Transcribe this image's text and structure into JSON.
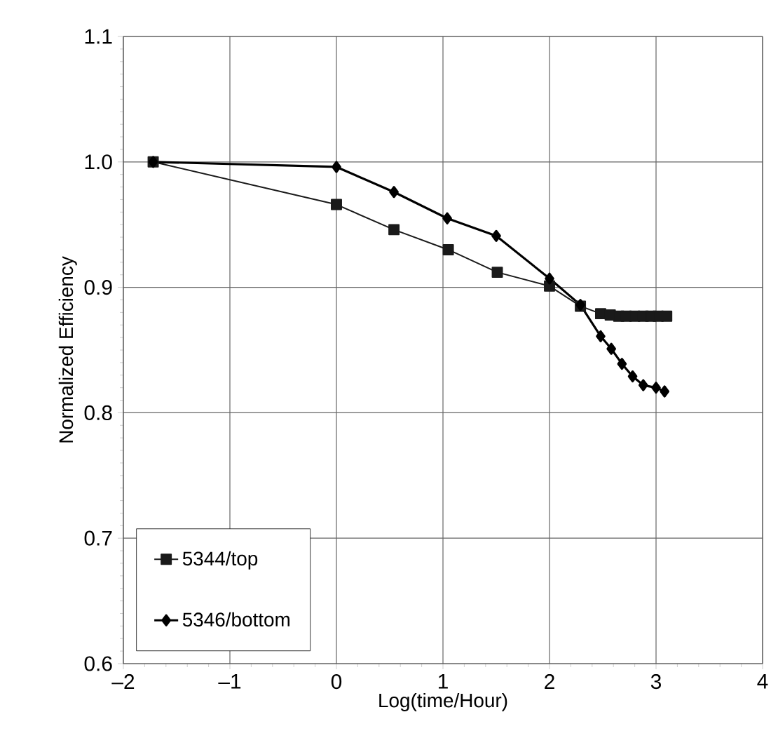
{
  "chart_data": {
    "type": "line",
    "xlabel": "Log(time/Hour)",
    "ylabel": "Normalized Efficiency",
    "xlim": [
      -2,
      4
    ],
    "ylim": [
      0.6,
      1.1
    ],
    "xticks": [
      {
        "value": -2,
        "label": "–2"
      },
      {
        "value": -1,
        "label": "–1"
      },
      0,
      1,
      2,
      3,
      4
    ],
    "yticks": [
      {
        "value": 0.6,
        "label": "0.6"
      },
      {
        "value": 0.7,
        "label": "0.7"
      },
      {
        "value": 0.8,
        "label": "0.8"
      },
      {
        "value": 0.9,
        "label": "0.9"
      },
      {
        "value": 1.0,
        "label": "1.0"
      },
      {
        "value": 1.1,
        "label": "1.1"
      }
    ],
    "grid": true,
    "legend": "bottom left",
    "series": [
      {
        "name": "5344/top",
        "color": "#1a1a1a",
        "marker": "square",
        "x": [
          -1.72,
          0,
          0.54,
          1.05,
          1.51,
          2.0,
          2.29,
          2.48,
          2.57,
          2.65,
          2.72,
          2.8,
          2.88,
          2.95,
          3.02,
          3.1
        ],
        "values": [
          1.0,
          0.966,
          0.946,
          0.93,
          0.912,
          0.901,
          0.885,
          0.879,
          0.878,
          0.877,
          0.877,
          0.877,
          0.877,
          0.877,
          0.877,
          0.877
        ]
      },
      {
        "name": "5346/bottom",
        "color": "#000000",
        "marker": "diamond",
        "x": [
          -1.72,
          0,
          0.54,
          1.04,
          1.5,
          2.0,
          2.29,
          2.48,
          2.58,
          2.68,
          2.78,
          2.88,
          3.0,
          3.08
        ],
        "values": [
          1.0,
          0.996,
          0.976,
          0.955,
          0.941,
          0.907,
          0.886,
          0.861,
          0.851,
          0.839,
          0.829,
          0.822,
          0.82,
          0.817
        ]
      }
    ]
  }
}
